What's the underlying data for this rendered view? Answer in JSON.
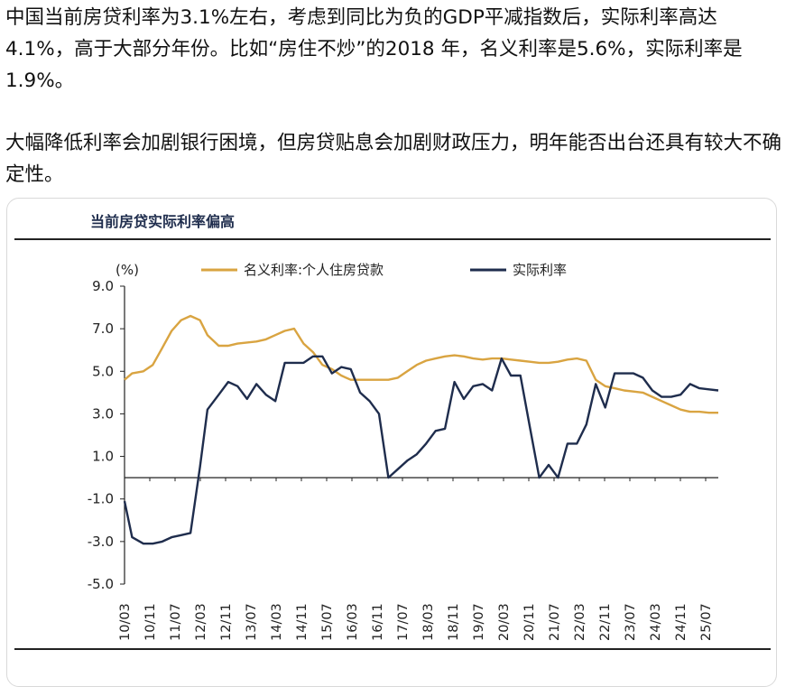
{
  "post": {
    "paragraph1": "中国当前房贷利率为3.1%左右，考虑到同比为负的GDP平减指数后，实际利率高达4.1%，高于大部分年份。比如“房住不炒”的2018 年，名义利率是5.6%，实际利率是1.9%。",
    "paragraph2": "大幅降低利率会加剧银行困境，但房贷贴息会加剧财政压力，明年能否出台还具有较大不确定性。"
  },
  "chart_data": {
    "type": "line",
    "title": "当前房贷实际利率偏高",
    "unit_label": "(%)",
    "ylim": [
      -5.0,
      9.0
    ],
    "yticks": [
      "9.0",
      "7.0",
      "5.0",
      "3.0",
      "1.0",
      "-1.0",
      "-3.0",
      "-5.0"
    ],
    "ytick_values": [
      9,
      7,
      5,
      3,
      1,
      -1,
      -3,
      -5
    ],
    "xticks": [
      "10/03",
      "10/11",
      "11/07",
      "12/03",
      "12/11",
      "13/07",
      "14/03",
      "14/11",
      "15/07",
      "16/03",
      "16/11",
      "17/07",
      "18/03",
      "18/11",
      "19/07",
      "20/03",
      "20/11",
      "21/07",
      "22/03",
      "22/11",
      "23/07",
      "24/03",
      "24/11",
      "25/07"
    ],
    "x_start": 2010.0,
    "x_end": 2025.75,
    "series": [
      {
        "name": "名义利率:个人住房贷款",
        "color": "#d9a441",
        "x": [
          2010.0,
          2010.2,
          2010.5,
          2010.75,
          2011.0,
          2011.25,
          2011.5,
          2011.75,
          2012.0,
          2012.2,
          2012.5,
          2012.75,
          2013.0,
          2013.5,
          2013.75,
          2014.0,
          2014.25,
          2014.5,
          2014.75,
          2015.0,
          2015.25,
          2015.5,
          2015.75,
          2016.0,
          2016.5,
          2016.75,
          2017.0,
          2017.25,
          2017.5,
          2017.75,
          2018.0,
          2018.25,
          2018.5,
          2018.75,
          2019.0,
          2019.25,
          2019.5,
          2019.75,
          2020.0,
          2020.25,
          2020.5,
          2020.75,
          2021.0,
          2021.25,
          2021.5,
          2021.75,
          2022.0,
          2022.25,
          2022.5,
          2022.75,
          2023.0,
          2023.25,
          2023.5,
          2023.75,
          2024.0,
          2024.25,
          2024.5,
          2024.75,
          2025.0,
          2025.25,
          2025.5,
          2025.75
        ],
        "y": [
          4.6,
          4.9,
          5.0,
          5.3,
          6.1,
          6.9,
          7.4,
          7.6,
          7.4,
          6.7,
          6.2,
          6.2,
          6.3,
          6.4,
          6.5,
          6.7,
          6.9,
          7.0,
          6.3,
          5.9,
          5.3,
          5.1,
          4.8,
          4.6,
          4.6,
          4.6,
          4.6,
          4.7,
          5.0,
          5.3,
          5.5,
          5.6,
          5.7,
          5.75,
          5.7,
          5.6,
          5.55,
          5.6,
          5.6,
          5.55,
          5.5,
          5.45,
          5.4,
          5.4,
          5.45,
          5.55,
          5.6,
          5.5,
          4.6,
          4.3,
          4.2,
          4.1,
          4.05,
          4.0,
          3.8,
          3.6,
          3.4,
          3.2,
          3.1,
          3.1,
          3.05,
          3.05
        ]
      },
      {
        "name": "实际利率",
        "color": "#1f2d4d",
        "x": [
          2010.0,
          2010.2,
          2010.5,
          2010.75,
          2011.0,
          2011.25,
          2011.5,
          2011.75,
          2012.0,
          2012.2,
          2012.5,
          2012.75,
          2013.0,
          2013.25,
          2013.5,
          2013.75,
          2014.0,
          2014.25,
          2014.5,
          2014.75,
          2015.0,
          2015.25,
          2015.5,
          2015.75,
          2016.0,
          2016.25,
          2016.5,
          2016.75,
          2017.0,
          2017.25,
          2017.5,
          2017.75,
          2018.0,
          2018.25,
          2018.5,
          2018.75,
          2019.0,
          2019.25,
          2019.5,
          2019.75,
          2020.0,
          2020.25,
          2020.5,
          2020.75,
          2021.0,
          2021.25,
          2021.5,
          2021.75,
          2022.0,
          2022.25,
          2022.5,
          2022.75,
          2023.0,
          2023.25,
          2023.5,
          2023.75,
          2024.0,
          2024.25,
          2024.5,
          2024.75,
          2025.0,
          2025.25,
          2025.5,
          2025.75
        ],
        "y": [
          -1.1,
          -2.8,
          -3.1,
          -3.1,
          -3.0,
          -2.8,
          -2.7,
          -2.6,
          0.5,
          3.2,
          3.9,
          4.5,
          4.3,
          3.7,
          4.4,
          3.9,
          3.6,
          5.4,
          5.4,
          5.4,
          5.7,
          5.7,
          4.9,
          5.2,
          5.1,
          4.0,
          3.6,
          3.0,
          0.0,
          0.4,
          0.8,
          1.1,
          1.6,
          2.2,
          2.3,
          4.5,
          3.7,
          4.3,
          4.4,
          4.1,
          5.6,
          4.8,
          4.8,
          2.4,
          0.0,
          0.6,
          0.0,
          1.6,
          1.6,
          2.5,
          4.4,
          3.3,
          4.9,
          4.9,
          4.9,
          4.7,
          4.1,
          3.8,
          3.8,
          3.9,
          4.4,
          4.2,
          4.15,
          4.1
        ]
      }
    ]
  }
}
